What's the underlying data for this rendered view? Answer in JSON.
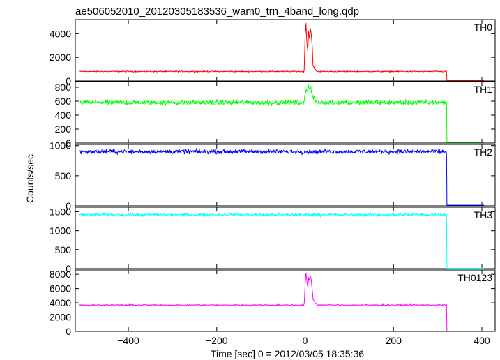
{
  "chart_data": {
    "type": "line",
    "title": "ae506052010_20120305183536_wam0_trn_4band_long.qdp",
    "xlabel": "Time [sec] 0 = 2012/03/05 18:35:36",
    "ylabel": "Counts/sec",
    "xlim": [
      -520,
      430
    ],
    "x_ticks": [
      -400,
      -200,
      0,
      200,
      400
    ],
    "x_tick_labels": [
      "−400",
      "−200",
      "0",
      "200",
      "400"
    ],
    "panels": [
      {
        "name": "TH0",
        "color": "#ff0000",
        "ylim": [
          0,
          5200
        ],
        "y_ticks": [
          0,
          2000,
          4000
        ],
        "baseline": 800,
        "noise": 35,
        "end_time": 320,
        "after_level": 50,
        "burst": [
          [
            -2,
            900
          ],
          [
            0,
            3800
          ],
          [
            2,
            4900
          ],
          [
            4,
            3200
          ],
          [
            6,
            2600
          ],
          [
            8,
            4300
          ],
          [
            10,
            3600
          ],
          [
            12,
            4400
          ],
          [
            14,
            3900
          ],
          [
            16,
            3000
          ],
          [
            18,
            1300
          ],
          [
            22,
            1000
          ],
          [
            26,
            850
          ]
        ]
      },
      {
        "name": "TH1",
        "color": "#00ff00",
        "ylim": [
          0,
          880
        ],
        "y_ticks": [
          0,
          200,
          400,
          600,
          800
        ],
        "baseline": 580,
        "noise": 28,
        "end_time": 320,
        "after_level": 10,
        "burst": [
          [
            -2,
            590
          ],
          [
            0,
            680
          ],
          [
            4,
            760
          ],
          [
            8,
            820
          ],
          [
            12,
            790
          ],
          [
            16,
            700
          ],
          [
            20,
            640
          ],
          [
            26,
            600
          ]
        ]
      },
      {
        "name": "TH2",
        "color": "#0000ff",
        "ylim": [
          0,
          1020
        ],
        "y_ticks": [
          0,
          500,
          1000
        ],
        "baseline": 900,
        "noise": 28,
        "end_time": 320,
        "after_level": 10,
        "burst": []
      },
      {
        "name": "TH3",
        "color": "#00ffff",
        "ylim": [
          0,
          1620
        ],
        "y_ticks": [
          0,
          500,
          1000,
          1500
        ],
        "baseline": 1420,
        "noise": 30,
        "end_time": 320,
        "after_level": 10,
        "burst": []
      },
      {
        "name": "TH0123",
        "color": "#ff00ff",
        "ylim": [
          0,
          8600
        ],
        "y_ticks": [
          0,
          2000,
          4000,
          6000,
          8000
        ],
        "baseline": 3700,
        "noise": 60,
        "end_time": 320,
        "after_level": 50,
        "burst": [
          [
            -2,
            3800
          ],
          [
            0,
            6500
          ],
          [
            2,
            8200
          ],
          [
            4,
            7000
          ],
          [
            6,
            6200
          ],
          [
            8,
            7500
          ],
          [
            10,
            7000
          ],
          [
            12,
            7700
          ],
          [
            14,
            7200
          ],
          [
            16,
            6000
          ],
          [
            18,
            4500
          ],
          [
            22,
            4100
          ],
          [
            26,
            3800
          ]
        ]
      }
    ]
  }
}
